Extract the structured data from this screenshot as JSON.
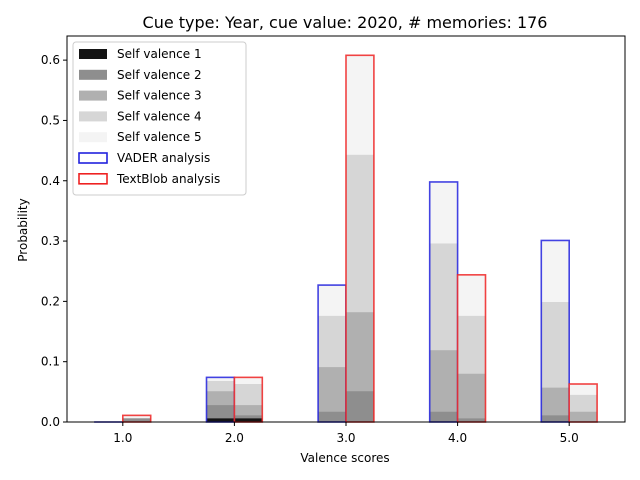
{
  "chart_data": {
    "type": "bar",
    "title": "Cue type: Year, cue value: 2020, # memories: 176",
    "xlabel": "Valence scores",
    "ylabel": "Probability",
    "categories": [
      "1.0",
      "2.0",
      "3.0",
      "4.0",
      "5.0"
    ],
    "x": [
      1,
      2,
      3,
      4,
      5
    ],
    "xlim": [
      0.5,
      5.5
    ],
    "ylim": [
      0,
      0.64
    ],
    "yticks": [
      "0.0",
      "0.1",
      "0.2",
      "0.3",
      "0.4",
      "0.5",
      "0.6"
    ],
    "ytick_values": [
      0,
      0.1,
      0.2,
      0.3,
      0.4,
      0.5,
      0.6
    ],
    "grid": false,
    "legend_position": "top-left",
    "stacking": "cumulative",
    "groups": [
      {
        "name": "VADER analysis",
        "color": "#2222dd",
        "totals": [
          0.0,
          0.074,
          0.227,
          0.398,
          0.301
        ],
        "self_valence_cumulative": [
          {
            "name": "Self valence 1",
            "values": [
              0.0,
              0.006,
              0.0,
              0.0,
              0.0
            ]
          },
          {
            "name": "Self valence 2",
            "values": [
              0.0,
              0.028,
              0.017,
              0.017,
              0.011
            ]
          },
          {
            "name": "Self valence 3",
            "values": [
              0.0,
              0.051,
              0.091,
              0.119,
              0.057
            ]
          },
          {
            "name": "Self valence 4",
            "values": [
              0.0,
              0.068,
              0.176,
              0.296,
              0.199
            ]
          },
          {
            "name": "Self valence 5",
            "values": [
              0.0,
              0.074,
              0.227,
              0.398,
              0.301
            ]
          }
        ]
      },
      {
        "name": "TextBlob analysis",
        "color": "#ee2222",
        "totals": [
          0.011,
          0.074,
          0.608,
          0.244,
          0.063
        ],
        "self_valence_cumulative": [
          {
            "name": "Self valence 1",
            "values": [
              0.0,
              0.006,
              0.0,
              0.0,
              0.0
            ]
          },
          {
            "name": "Self valence 2",
            "values": [
              0.006,
              0.011,
              0.051,
              0.006,
              0.0
            ]
          },
          {
            "name": "Self valence 3",
            "values": [
              0.006,
              0.028,
              0.182,
              0.08,
              0.017
            ]
          },
          {
            "name": "Self valence 4",
            "values": [
              0.006,
              0.063,
              0.443,
              0.176,
              0.045
            ]
          },
          {
            "name": "Self valence 5",
            "values": [
              0.011,
              0.074,
              0.608,
              0.244,
              0.063
            ]
          }
        ]
      }
    ],
    "legend": [
      {
        "label": "Self valence 1",
        "kind": "fill",
        "color": "#141414"
      },
      {
        "label": "Self valence 2",
        "kind": "fill",
        "color": "#8e8e8e"
      },
      {
        "label": "Self valence 3",
        "kind": "fill",
        "color": "#b0b0b0"
      },
      {
        "label": "Self valence 4",
        "kind": "fill",
        "color": "#d6d6d6"
      },
      {
        "label": "Self valence 5",
        "kind": "fill",
        "color": "#f4f4f4"
      },
      {
        "label": "VADER analysis",
        "kind": "outline",
        "color": "#2222dd"
      },
      {
        "label": "TextBlob analysis",
        "kind": "outline",
        "color": "#ee2222"
      }
    ],
    "level_colors": [
      "#141414",
      "#8e8e8e",
      "#b0b0b0",
      "#d6d6d6",
      "#f4f4f4"
    ]
  }
}
